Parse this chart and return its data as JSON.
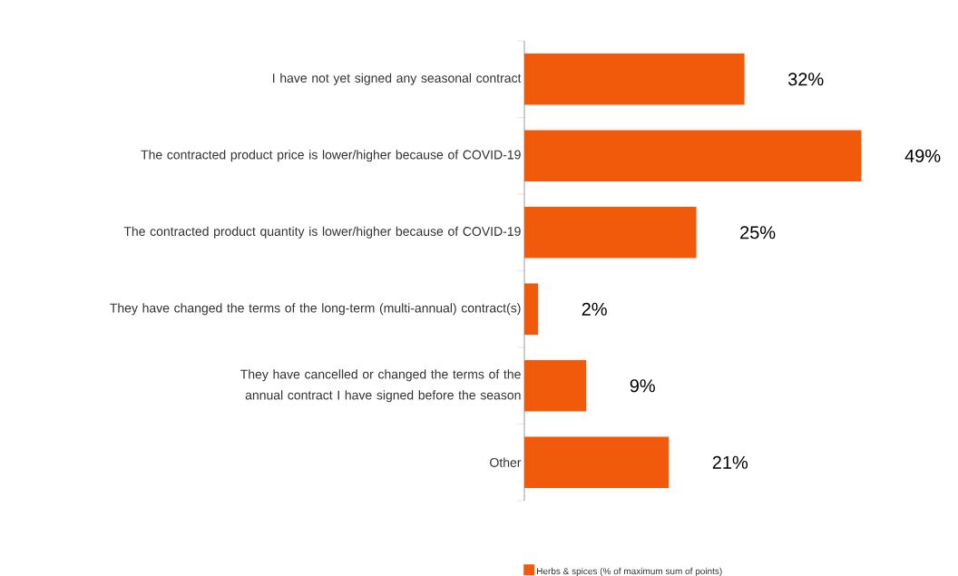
{
  "chart_data": {
    "type": "bar",
    "orientation": "horizontal",
    "categories": [
      "I have not yet signed any seasonal contract",
      "The contracted product price is lower/higher because of COVID-19",
      "The contracted product quantity is lower/higher because of COVID-19",
      "They have changed the terms of the long-term (multi-annual) contract(s)",
      "They have cancelled or changed the terms of the annual contract I have signed before the season",
      "Other"
    ],
    "series": [
      {
        "name": "Herbs & spices (% of maximum sum of points)",
        "color": "#f05a0a",
        "values": [
          32,
          49,
          25,
          2,
          9,
          21
        ],
        "value_labels": [
          "32%",
          "49%",
          "25%",
          "2%",
          "9%",
          "21%"
        ]
      }
    ],
    "legend": "bottom left"
  }
}
